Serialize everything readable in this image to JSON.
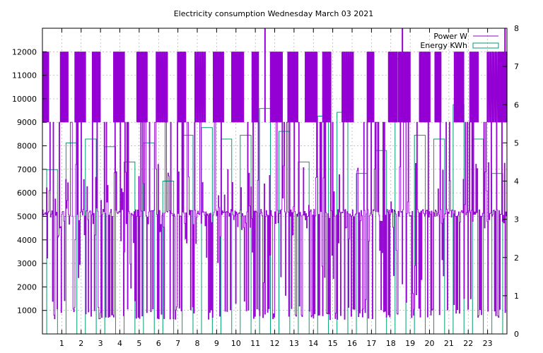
{
  "chart_data": {
    "type": "bar",
    "title": "Electricity consumption Wednesday March 03 2021",
    "x_ticks": [
      "1",
      "2",
      "3",
      "4",
      "5",
      "6",
      "7",
      "8",
      "9",
      "10",
      "11",
      "12",
      "13",
      "14",
      "15",
      "16",
      "17",
      "18",
      "19",
      "20",
      "21",
      "22",
      "23"
    ],
    "y_left_ticks": [
      "1000",
      "2000",
      "3000",
      "4000",
      "5000",
      "6000",
      "7000",
      "8000",
      "9000",
      "10000",
      "11000",
      "12000"
    ],
    "y_right_ticks": [
      "0",
      "1",
      "2",
      "3",
      "4",
      "5",
      "6",
      "7",
      "8"
    ],
    "xlim": [
      0,
      24
    ],
    "ylim_left": [
      0,
      13000
    ],
    "ylim_right": [
      0,
      8
    ],
    "grid": true,
    "legend_position": "top-right",
    "series": [
      {
        "name": "Energy KWh",
        "axis": "right",
        "color": "#009e73",
        "hours": [
          0,
          1,
          2,
          3,
          4,
          5,
          6,
          7,
          8,
          9,
          10,
          11,
          12,
          13,
          14,
          15,
          16,
          17,
          18,
          19,
          20,
          21,
          22,
          23
        ],
        "values": [
          4.3,
          5.0,
          5.1,
          4.9,
          4.5,
          5.0,
          4.0,
          5.2,
          5.4,
          5.1,
          5.2,
          5.9,
          5.3,
          4.5,
          5.7,
          5.8,
          4.2,
          4.8,
          7.2,
          5.2,
          5.1,
          6.0,
          5.1,
          4.2
        ]
      },
      {
        "name": "Power W",
        "axis": "left",
        "color": "#9400d3",
        "burst_hours": [
          0.05,
          0.95,
          1.7,
          2.6,
          3.7,
          4.9,
          5.9,
          7.0,
          7.9,
          8.85,
          9.8,
          10.85,
          11.8,
          12.7,
          13.6,
          14.5,
          15.5,
          16.8,
          17.9,
          18.4,
          19.5,
          20.3,
          21.3,
          22.1,
          23.0,
          23.6
        ],
        "spike_hours": [
          11.5,
          18.6,
          23.9
        ],
        "note_levels": [
          5100,
          9000,
          12000
        ]
      }
    ]
  }
}
